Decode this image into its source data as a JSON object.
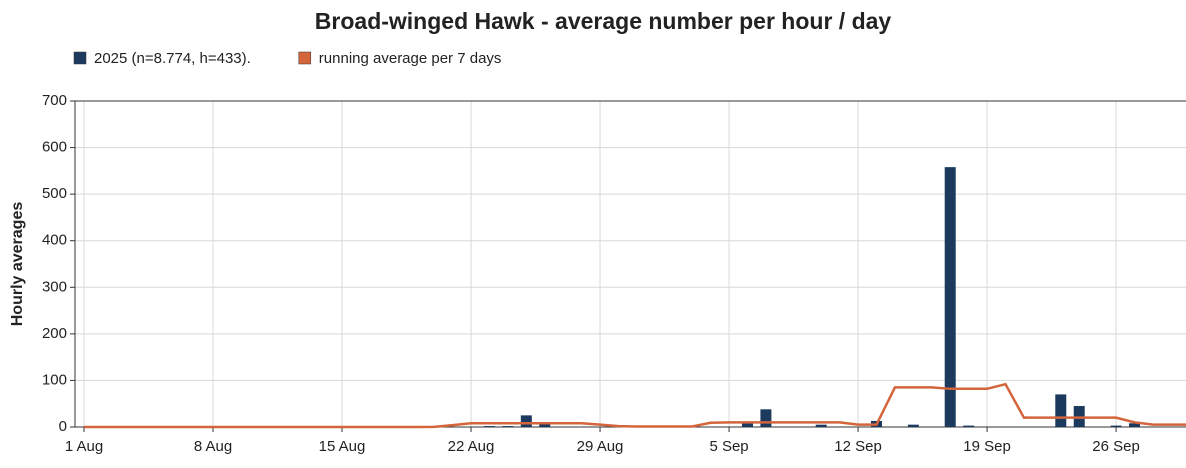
{
  "chart_data": {
    "type": "bar",
    "title": "Broad-winged Hawk - average number per hour / day",
    "y_label": "Hourly averages",
    "categories": [
      "1 Aug",
      null,
      null,
      null,
      null,
      null,
      null,
      "8 Aug",
      null,
      null,
      null,
      null,
      null,
      null,
      "15 Aug",
      null,
      null,
      null,
      null,
      null,
      null,
      "22 Aug",
      null,
      null,
      null,
      null,
      null,
      null,
      "29 Aug",
      null,
      null,
      null,
      null,
      null,
      null,
      "5 Sep",
      null,
      null,
      null,
      null,
      null,
      null,
      "12 Sep",
      null,
      null,
      null,
      null,
      null,
      null,
      "19 Sep",
      null,
      null,
      null,
      null,
      null,
      null,
      "26 Sep",
      null,
      null,
      null,
      null
    ],
    "series": [
      {
        "name": "2025 (n=8.774, h=433).",
        "type": "bar",
        "color": "#1c3a5e",
        "values": [
          0,
          0,
          0,
          0,
          0,
          0,
          0,
          0,
          0,
          0,
          0,
          0,
          0,
          0,
          0,
          0,
          0,
          0,
          0,
          2,
          0,
          0,
          2,
          2,
          25,
          8,
          0,
          0,
          0,
          0,
          0,
          0,
          0,
          0,
          0,
          0,
          10,
          38,
          0,
          0,
          5,
          0,
          0,
          13,
          0,
          5,
          0,
          558,
          3,
          0,
          0,
          0,
          0,
          70,
          45,
          0,
          3,
          8,
          0,
          0,
          0
        ]
      },
      {
        "name": "running average per 7 days",
        "type": "line",
        "color": "#d4643a",
        "values": [
          0,
          0,
          0,
          0,
          0,
          0,
          0,
          0,
          0,
          0,
          0,
          0,
          0,
          0,
          0,
          0,
          0,
          0,
          0,
          0.3,
          4,
          8,
          8,
          8,
          8,
          8,
          8,
          8,
          5,
          2,
          1,
          1,
          1,
          1,
          9,
          10,
          10,
          10,
          10,
          10,
          10,
          10,
          5,
          5,
          85,
          85,
          85,
          82,
          82,
          82,
          92,
          20,
          20,
          20,
          20,
          20,
          20,
          10,
          5,
          5,
          5
        ]
      }
    ],
    "ylim": [
      0,
      700
    ],
    "yticks": [
      0,
      100,
      200,
      300,
      400,
      500,
      600,
      700
    ],
    "grid": true
  }
}
